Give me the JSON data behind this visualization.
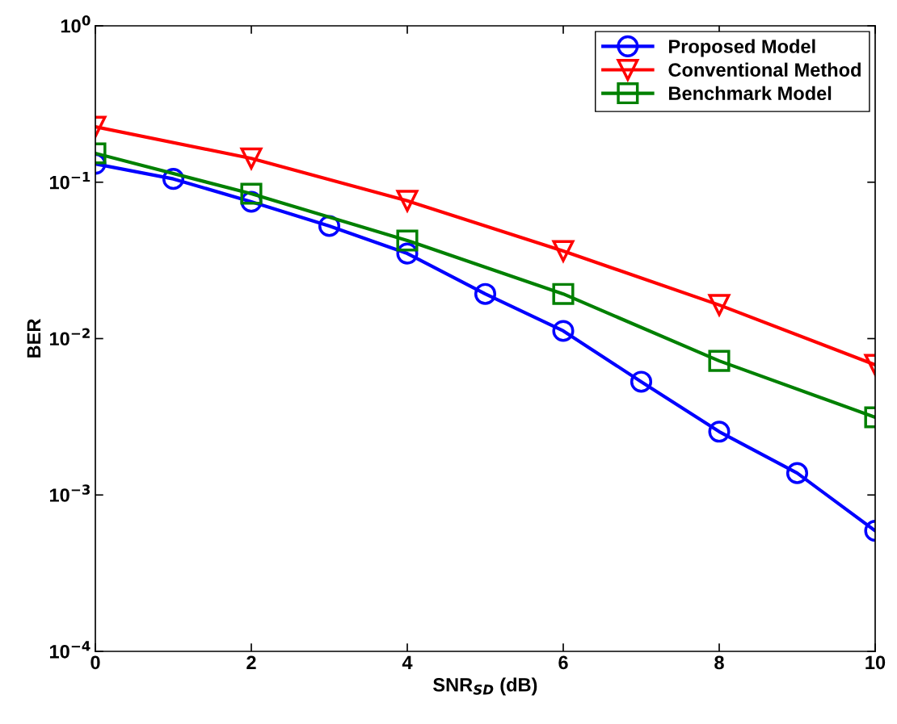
{
  "chart_data": {
    "type": "line",
    "xlabel": "SNR$_{SD}$ (dB)",
    "ylabel": "BER",
    "log": "y",
    "grid": false,
    "legend": "top right",
    "line_style": "solid",
    "xlim": [
      0,
      10
    ],
    "xticks": [
      0,
      2,
      4,
      6,
      8,
      10
    ],
    "ylim": [
      0.0001,
      1
    ],
    "yticks": [
      {
        "value": 0.0001,
        "label": "10$^{−4}$"
      },
      {
        "value": 0.001,
        "label": "10$^{−3}$"
      },
      {
        "value": 0.01,
        "label": "10$^{−2}$"
      },
      {
        "value": 0.1,
        "label": "10$^{−1}$"
      },
      {
        "value": 1,
        "label": "10$^{0}$"
      }
    ],
    "series": [
      {
        "name": "Proposed Model",
        "color": "#0000ff",
        "marker": "circle",
        "x": [
          0,
          1,
          2,
          3,
          4,
          5,
          6,
          7,
          8,
          9,
          10
        ],
        "values": [
          0.131,
          0.105,
          0.075,
          0.0525,
          0.035,
          0.0193,
          0.0112,
          0.0053,
          0.00254,
          0.00138,
          0.00059
        ]
      },
      {
        "name": "Conventional Method",
        "color": "#ff0000",
        "marker": "triangle",
        "x": [
          0,
          2,
          4,
          6,
          8,
          10
        ],
        "values": [
          0.226,
          0.142,
          0.076,
          0.0363,
          0.0164,
          0.0068
        ]
      },
      {
        "name": "Benchmark Model",
        "color": "#008000",
        "marker": "square",
        "x": [
          0,
          2,
          4,
          6,
          8,
          10
        ],
        "values": [
          0.153,
          0.0844,
          0.0424,
          0.0193,
          0.0072,
          0.00314
        ]
      }
    ]
  }
}
